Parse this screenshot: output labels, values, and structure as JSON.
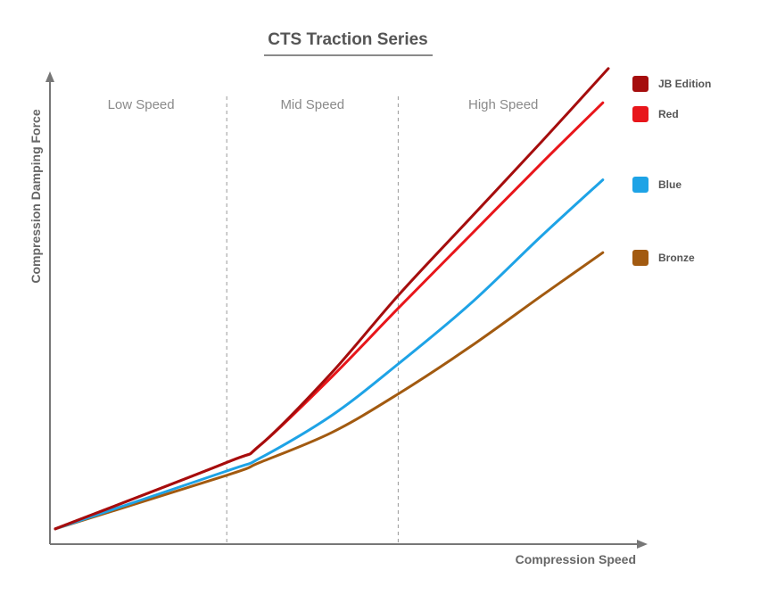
{
  "chart_data": {
    "type": "line",
    "title": "CTS Traction Series",
    "xlabel": "Compression Speed",
    "ylabel": "Compression Damping Force",
    "xlim": [
      0,
      100
    ],
    "ylim": [
      0,
      100
    ],
    "grid": false,
    "legend_position": "right",
    "regions": [
      {
        "label": "Low Speed",
        "start": 0,
        "end": 31
      },
      {
        "label": "Mid Speed",
        "start": 31,
        "end": 62
      },
      {
        "label": "High Speed",
        "start": 62,
        "end": 100
      }
    ],
    "series": [
      {
        "name": "JB Edition",
        "color": "#a50d0d",
        "x": [
          0,
          31,
          37,
          50,
          62,
          75,
          88,
          100
        ],
        "y": [
          1.5,
          17,
          21,
          38,
          56,
          74,
          92,
          109
        ]
      },
      {
        "name": "Red",
        "color": "#e8161b",
        "x": [
          0,
          31,
          37,
          50,
          62,
          75,
          88,
          99
        ],
        "y": [
          1.5,
          17,
          21,
          37,
          53,
          70,
          87,
          101
        ]
      },
      {
        "name": "Blue",
        "color": "#1ea3e6",
        "x": [
          0,
          31,
          37,
          50,
          62,
          75,
          88,
          99
        ],
        "y": [
          1.5,
          15,
          18,
          28,
          40,
          54,
          70,
          83
        ]
      },
      {
        "name": "Bronze",
        "color": "#a25a10",
        "x": [
          0,
          31,
          37,
          50,
          62,
          75,
          88,
          99
        ],
        "y": [
          1.5,
          14,
          17,
          24,
          33,
          44,
          56,
          66
        ]
      }
    ]
  }
}
